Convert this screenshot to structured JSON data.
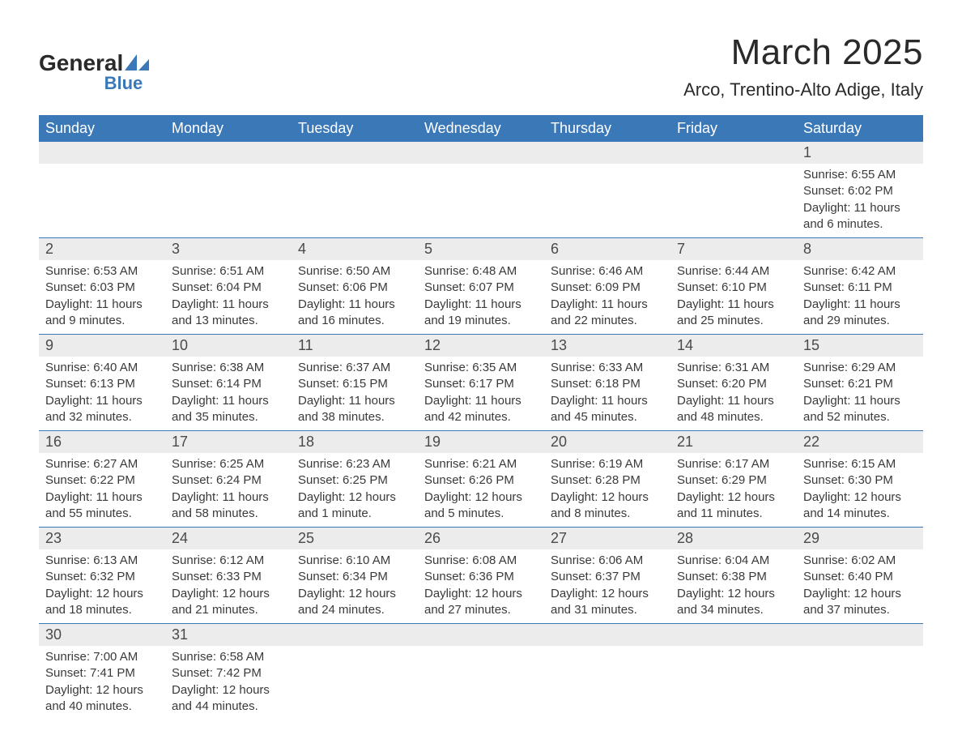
{
  "brand": {
    "line1_a": "General",
    "line2": "Blue",
    "logo_color": "#3b78b8",
    "text_color": "#2a2a2a"
  },
  "header": {
    "month_title": "March 2025",
    "location": "Arco, Trentino-Alto Adige, Italy"
  },
  "styling": {
    "header_bg": "#3b78b8",
    "header_text": "#ffffff",
    "daynum_bg": "#ececec",
    "row_divider": "#3b78b8",
    "body_text": "#3a3a3a",
    "page_bg": "#ffffff",
    "th_fontsize": 18,
    "daynum_fontsize": 18,
    "cell_fontsize": 15,
    "title_fontsize": 44,
    "location_fontsize": 22
  },
  "weekdays": [
    "Sunday",
    "Monday",
    "Tuesday",
    "Wednesday",
    "Thursday",
    "Friday",
    "Saturday"
  ],
  "weeks": [
    {
      "days": [
        null,
        null,
        null,
        null,
        null,
        null,
        {
          "n": "1",
          "sunrise": "Sunrise: 6:55 AM",
          "sunset": "Sunset: 6:02 PM",
          "day1": "Daylight: 11 hours",
          "day2": "and 6 minutes."
        }
      ]
    },
    {
      "days": [
        {
          "n": "2",
          "sunrise": "Sunrise: 6:53 AM",
          "sunset": "Sunset: 6:03 PM",
          "day1": "Daylight: 11 hours",
          "day2": "and 9 minutes."
        },
        {
          "n": "3",
          "sunrise": "Sunrise: 6:51 AM",
          "sunset": "Sunset: 6:04 PM",
          "day1": "Daylight: 11 hours",
          "day2": "and 13 minutes."
        },
        {
          "n": "4",
          "sunrise": "Sunrise: 6:50 AM",
          "sunset": "Sunset: 6:06 PM",
          "day1": "Daylight: 11 hours",
          "day2": "and 16 minutes."
        },
        {
          "n": "5",
          "sunrise": "Sunrise: 6:48 AM",
          "sunset": "Sunset: 6:07 PM",
          "day1": "Daylight: 11 hours",
          "day2": "and 19 minutes."
        },
        {
          "n": "6",
          "sunrise": "Sunrise: 6:46 AM",
          "sunset": "Sunset: 6:09 PM",
          "day1": "Daylight: 11 hours",
          "day2": "and 22 minutes."
        },
        {
          "n": "7",
          "sunrise": "Sunrise: 6:44 AM",
          "sunset": "Sunset: 6:10 PM",
          "day1": "Daylight: 11 hours",
          "day2": "and 25 minutes."
        },
        {
          "n": "8",
          "sunrise": "Sunrise: 6:42 AM",
          "sunset": "Sunset: 6:11 PM",
          "day1": "Daylight: 11 hours",
          "day2": "and 29 minutes."
        }
      ]
    },
    {
      "days": [
        {
          "n": "9",
          "sunrise": "Sunrise: 6:40 AM",
          "sunset": "Sunset: 6:13 PM",
          "day1": "Daylight: 11 hours",
          "day2": "and 32 minutes."
        },
        {
          "n": "10",
          "sunrise": "Sunrise: 6:38 AM",
          "sunset": "Sunset: 6:14 PM",
          "day1": "Daylight: 11 hours",
          "day2": "and 35 minutes."
        },
        {
          "n": "11",
          "sunrise": "Sunrise: 6:37 AM",
          "sunset": "Sunset: 6:15 PM",
          "day1": "Daylight: 11 hours",
          "day2": "and 38 minutes."
        },
        {
          "n": "12",
          "sunrise": "Sunrise: 6:35 AM",
          "sunset": "Sunset: 6:17 PM",
          "day1": "Daylight: 11 hours",
          "day2": "and 42 minutes."
        },
        {
          "n": "13",
          "sunrise": "Sunrise: 6:33 AM",
          "sunset": "Sunset: 6:18 PM",
          "day1": "Daylight: 11 hours",
          "day2": "and 45 minutes."
        },
        {
          "n": "14",
          "sunrise": "Sunrise: 6:31 AM",
          "sunset": "Sunset: 6:20 PM",
          "day1": "Daylight: 11 hours",
          "day2": "and 48 minutes."
        },
        {
          "n": "15",
          "sunrise": "Sunrise: 6:29 AM",
          "sunset": "Sunset: 6:21 PM",
          "day1": "Daylight: 11 hours",
          "day2": "and 52 minutes."
        }
      ]
    },
    {
      "days": [
        {
          "n": "16",
          "sunrise": "Sunrise: 6:27 AM",
          "sunset": "Sunset: 6:22 PM",
          "day1": "Daylight: 11 hours",
          "day2": "and 55 minutes."
        },
        {
          "n": "17",
          "sunrise": "Sunrise: 6:25 AM",
          "sunset": "Sunset: 6:24 PM",
          "day1": "Daylight: 11 hours",
          "day2": "and 58 minutes."
        },
        {
          "n": "18",
          "sunrise": "Sunrise: 6:23 AM",
          "sunset": "Sunset: 6:25 PM",
          "day1": "Daylight: 12 hours",
          "day2": "and 1 minute."
        },
        {
          "n": "19",
          "sunrise": "Sunrise: 6:21 AM",
          "sunset": "Sunset: 6:26 PM",
          "day1": "Daylight: 12 hours",
          "day2": "and 5 minutes."
        },
        {
          "n": "20",
          "sunrise": "Sunrise: 6:19 AM",
          "sunset": "Sunset: 6:28 PM",
          "day1": "Daylight: 12 hours",
          "day2": "and 8 minutes."
        },
        {
          "n": "21",
          "sunrise": "Sunrise: 6:17 AM",
          "sunset": "Sunset: 6:29 PM",
          "day1": "Daylight: 12 hours",
          "day2": "and 11 minutes."
        },
        {
          "n": "22",
          "sunrise": "Sunrise: 6:15 AM",
          "sunset": "Sunset: 6:30 PM",
          "day1": "Daylight: 12 hours",
          "day2": "and 14 minutes."
        }
      ]
    },
    {
      "days": [
        {
          "n": "23",
          "sunrise": "Sunrise: 6:13 AM",
          "sunset": "Sunset: 6:32 PM",
          "day1": "Daylight: 12 hours",
          "day2": "and 18 minutes."
        },
        {
          "n": "24",
          "sunrise": "Sunrise: 6:12 AM",
          "sunset": "Sunset: 6:33 PM",
          "day1": "Daylight: 12 hours",
          "day2": "and 21 minutes."
        },
        {
          "n": "25",
          "sunrise": "Sunrise: 6:10 AM",
          "sunset": "Sunset: 6:34 PM",
          "day1": "Daylight: 12 hours",
          "day2": "and 24 minutes."
        },
        {
          "n": "26",
          "sunrise": "Sunrise: 6:08 AM",
          "sunset": "Sunset: 6:36 PM",
          "day1": "Daylight: 12 hours",
          "day2": "and 27 minutes."
        },
        {
          "n": "27",
          "sunrise": "Sunrise: 6:06 AM",
          "sunset": "Sunset: 6:37 PM",
          "day1": "Daylight: 12 hours",
          "day2": "and 31 minutes."
        },
        {
          "n": "28",
          "sunrise": "Sunrise: 6:04 AM",
          "sunset": "Sunset: 6:38 PM",
          "day1": "Daylight: 12 hours",
          "day2": "and 34 minutes."
        },
        {
          "n": "29",
          "sunrise": "Sunrise: 6:02 AM",
          "sunset": "Sunset: 6:40 PM",
          "day1": "Daylight: 12 hours",
          "day2": "and 37 minutes."
        }
      ]
    },
    {
      "days": [
        {
          "n": "30",
          "sunrise": "Sunrise: 7:00 AM",
          "sunset": "Sunset: 7:41 PM",
          "day1": "Daylight: 12 hours",
          "day2": "and 40 minutes."
        },
        {
          "n": "31",
          "sunrise": "Sunrise: 6:58 AM",
          "sunset": "Sunset: 7:42 PM",
          "day1": "Daylight: 12 hours",
          "day2": "and 44 minutes."
        },
        null,
        null,
        null,
        null,
        null
      ]
    }
  ]
}
